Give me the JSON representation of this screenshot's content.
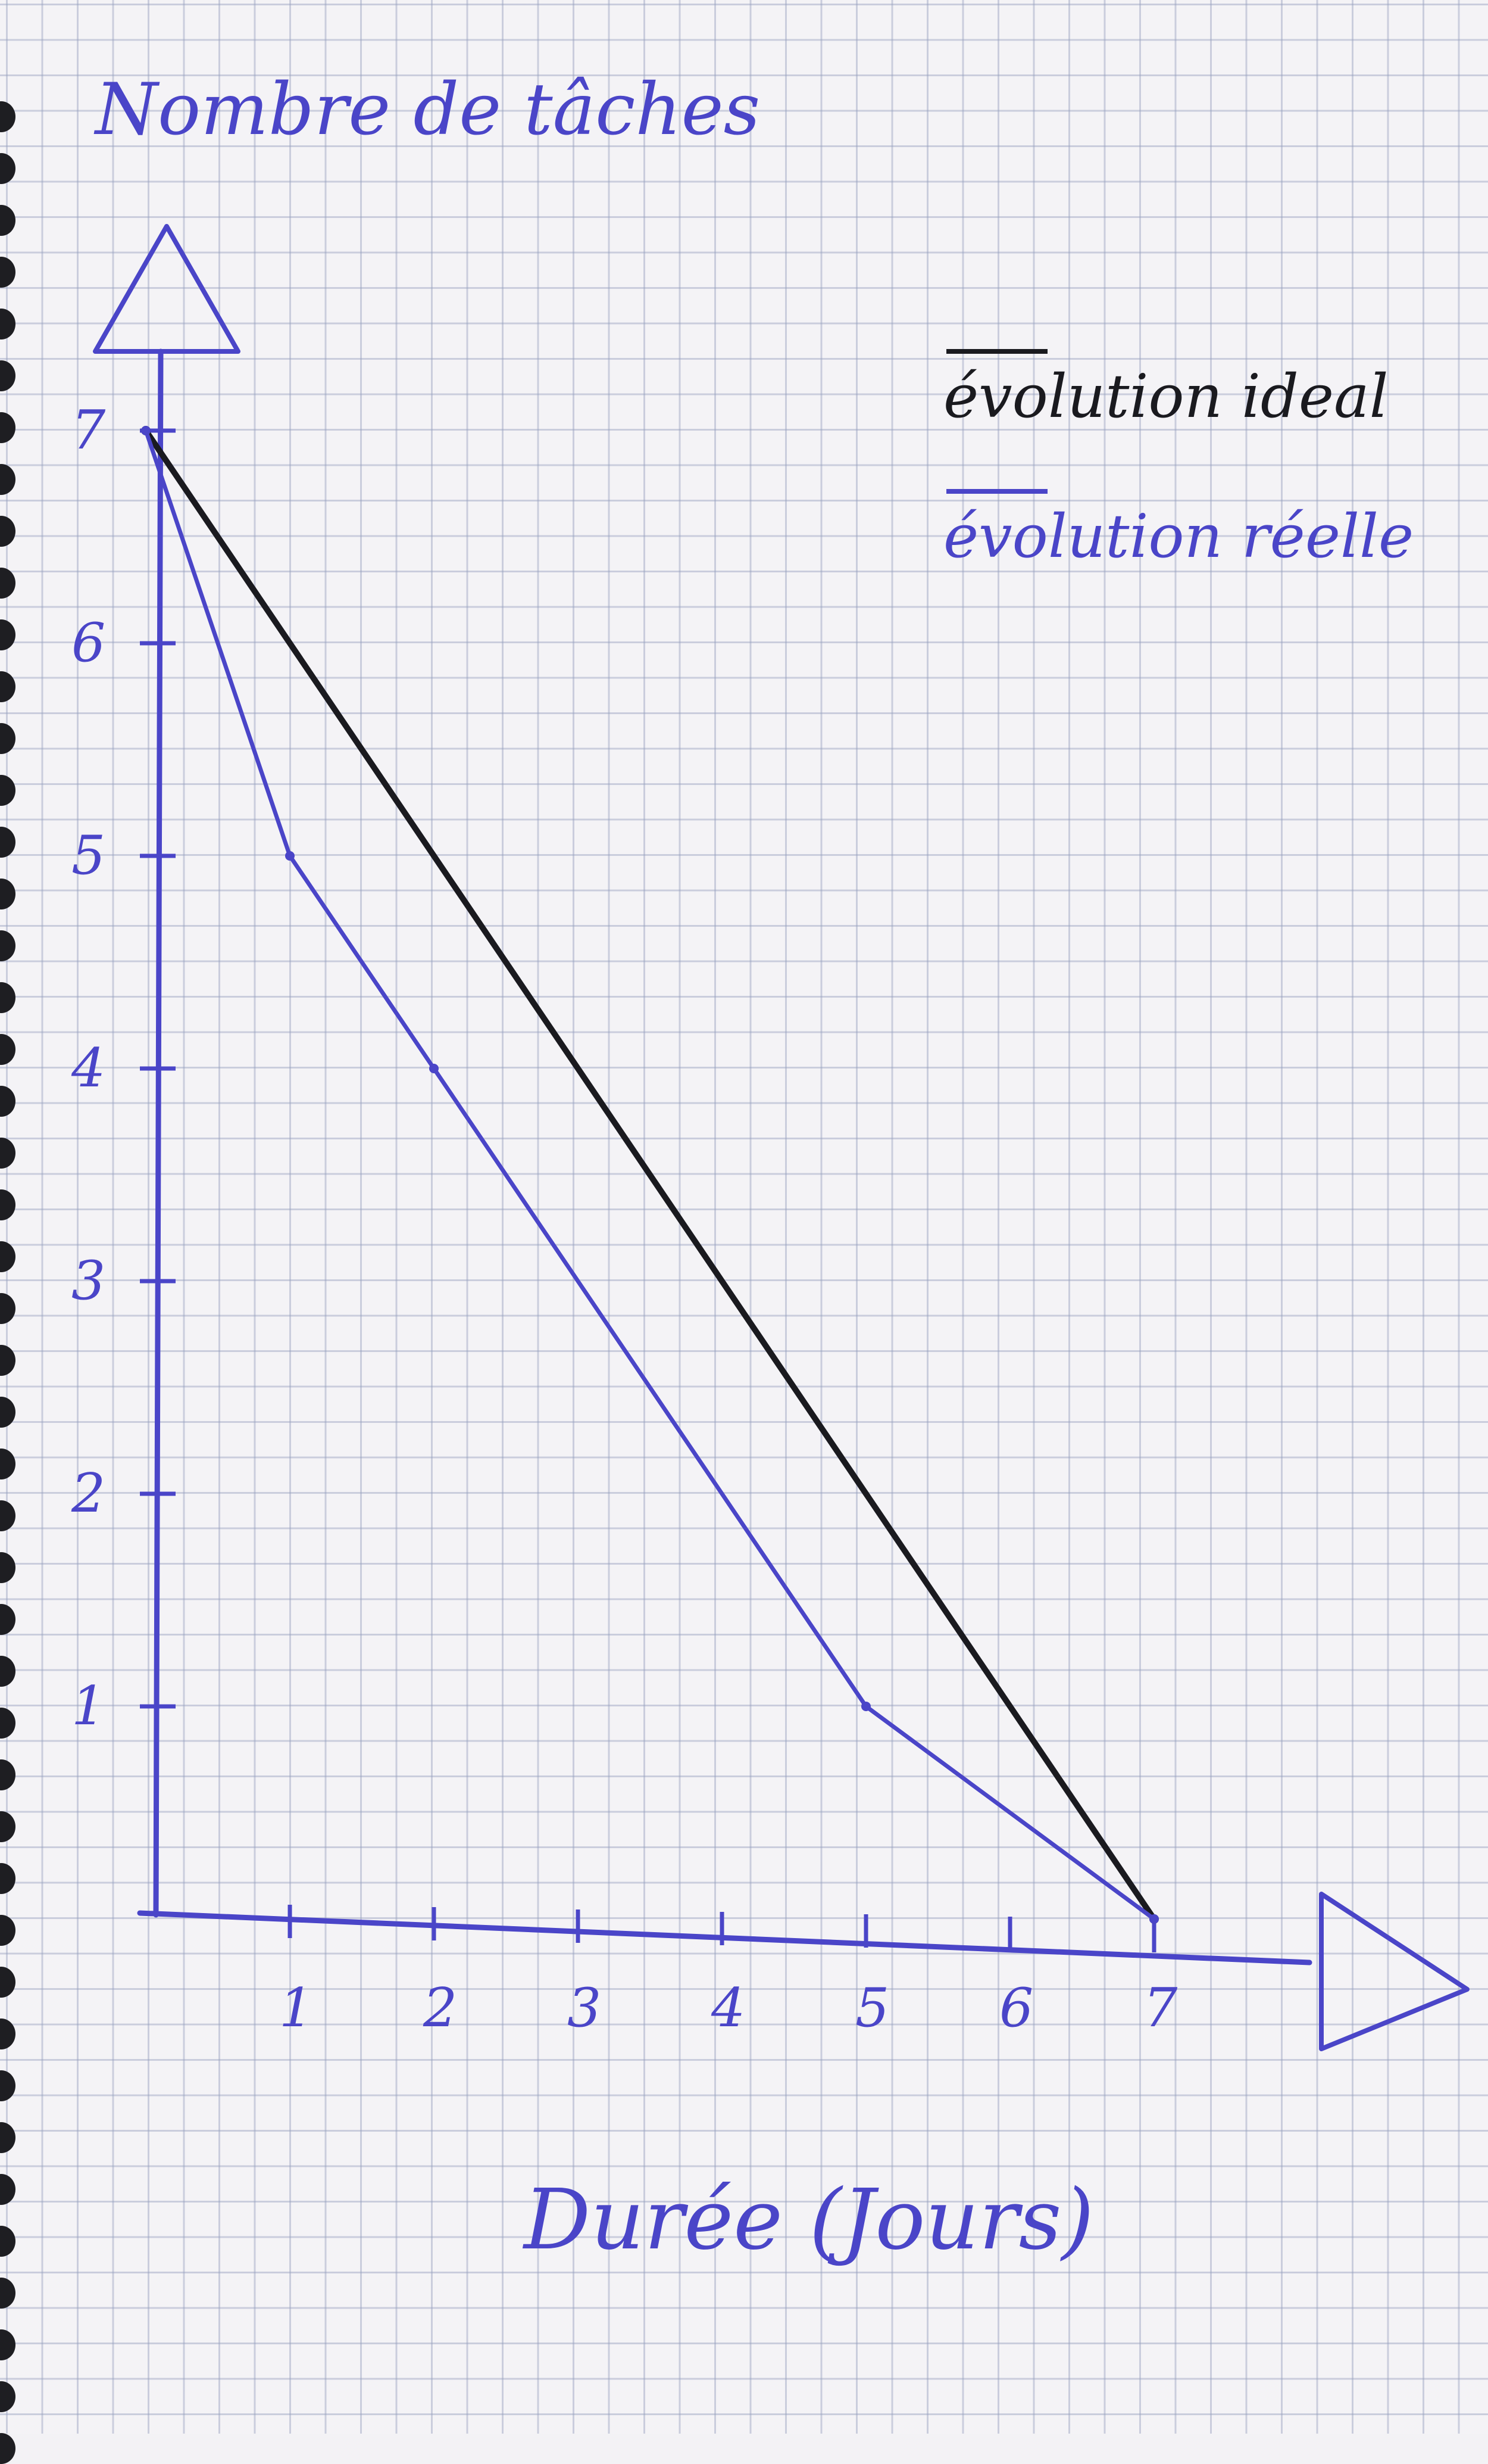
{
  "colors": {
    "paper": "#f4f3f6",
    "grid": "#9aa2c0",
    "ink_blue": "#4a45c8",
    "ink_black": "#1a1a1f"
  },
  "chart_data": {
    "type": "line",
    "title": "",
    "ylabel": "Nombre de tâches",
    "xlabel": "Durée (Jours)",
    "x_ticks": [
      "1",
      "2",
      "3",
      "4",
      "5",
      "6",
      "7"
    ],
    "y_ticks": [
      "1",
      "2",
      "3",
      "4",
      "5",
      "6",
      "7"
    ],
    "xlim": [
      0,
      7
    ],
    "ylim": [
      0,
      7
    ],
    "grid": true,
    "legend_position": "top-right",
    "series": [
      {
        "name": "évolution ideal",
        "color": "#1a1a1f",
        "points": [
          [
            0,
            7
          ],
          [
            7,
            0
          ]
        ]
      },
      {
        "name": "évolution réelle",
        "color": "#4a45c8",
        "points": [
          [
            0,
            7
          ],
          [
            1,
            5
          ],
          [
            2,
            4
          ],
          [
            5,
            1
          ],
          [
            7,
            0
          ]
        ]
      }
    ]
  }
}
